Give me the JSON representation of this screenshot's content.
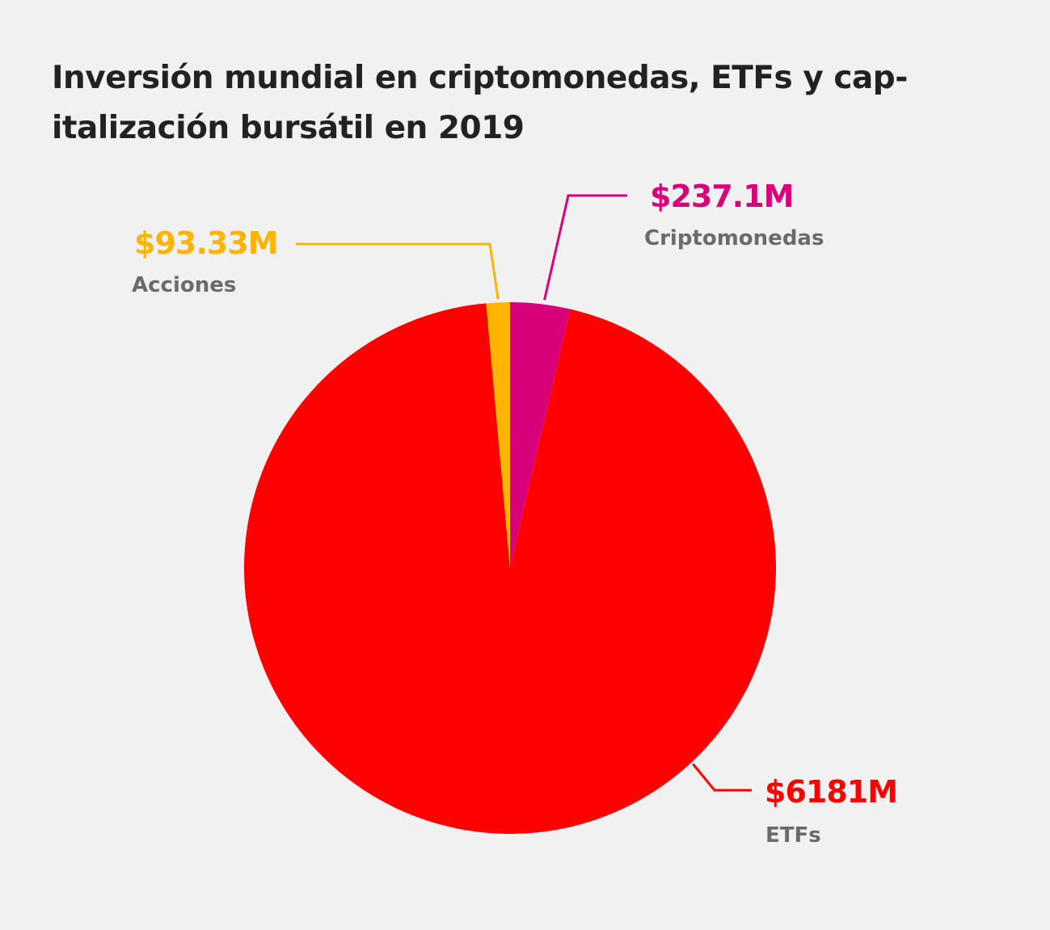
{
  "chart_data": {
    "type": "pie",
    "title": "Inversión mundial en criptomonedas, ETFs y capitalización bursátil en 2019",
    "title_display": "Inversión mundial en criptomonedas, ETFs y cap-italización bursátil en 2019",
    "slices": [
      {
        "label": "Criptomonedas",
        "value": 237.1,
        "value_label": "$237.1M",
        "color": "#d9017a"
      },
      {
        "label": "ETFs",
        "value": 6181,
        "value_label": "$6181M",
        "color": "#ff0000"
      },
      {
        "label": "Acciones",
        "value": 93.33,
        "value_label": "$93.33M",
        "color": "#ffb400"
      }
    ],
    "start_angle_deg": 0,
    "direction": "clockwise",
    "legend": "none"
  }
}
